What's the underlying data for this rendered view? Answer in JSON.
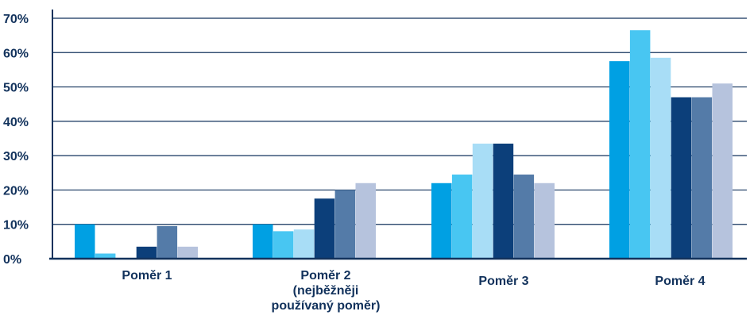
{
  "chart_data": {
    "type": "bar",
    "title": "",
    "xlabel": "",
    "ylabel": "",
    "ylim": [
      0,
      70
    ],
    "yticks": [
      "0%",
      "10%",
      "20%",
      "30%",
      "40%",
      "50%",
      "60%",
      "70%"
    ],
    "grid": true,
    "legend": "none",
    "categories": [
      [
        "Poměr 1"
      ],
      [
        "Poměr 2",
        "(nejběžněji",
        "používaný poměr)"
      ],
      [
        "Poměr 3"
      ],
      [
        "Poměr 4"
      ]
    ],
    "series": [
      {
        "color": "#00a0e3",
        "values": [
          10,
          10,
          22,
          57.5
        ]
      },
      {
        "color": "#48c6f2",
        "values": [
          1.5,
          8,
          24.5,
          66.5
        ]
      },
      {
        "color": "#a8ddf6",
        "values": [
          0,
          8.5,
          33.5,
          58.5
        ]
      },
      {
        "color": "#0c3f7a",
        "values": [
          3.5,
          17.5,
          33.5,
          47
        ]
      },
      {
        "color": "#547ba8",
        "values": [
          9.5,
          20,
          24.5,
          47
        ]
      },
      {
        "color": "#b6c3dd",
        "values": [
          3.5,
          22,
          22,
          51
        ]
      }
    ]
  },
  "colors": {
    "axis": "#12325c",
    "grid": "#12325c",
    "text": "#12325c"
  }
}
